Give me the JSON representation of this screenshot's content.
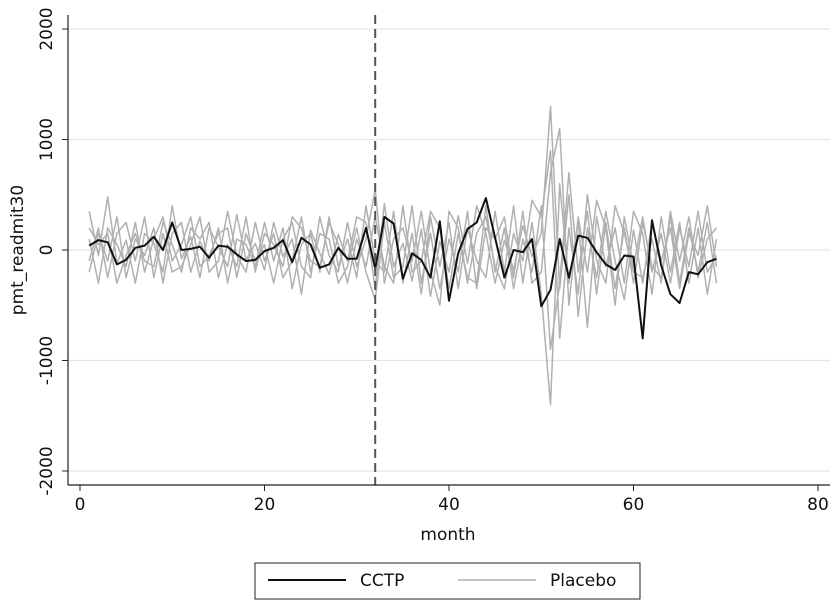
{
  "chart_data": {
    "type": "line",
    "x_label": "month",
    "y_label": "pmt_readmit30",
    "x": [
      1,
      2,
      3,
      4,
      5,
      6,
      7,
      8,
      9,
      10,
      11,
      12,
      13,
      14,
      15,
      16,
      17,
      18,
      19,
      20,
      21,
      22,
      23,
      24,
      25,
      26,
      27,
      28,
      29,
      30,
      31,
      32,
      33,
      34,
      35,
      36,
      37,
      38,
      39,
      40,
      41,
      42,
      43,
      44,
      45,
      46,
      47,
      48,
      49,
      50,
      51,
      52,
      53,
      54,
      55,
      56,
      57,
      58,
      59,
      60,
      61,
      62,
      63,
      64,
      65,
      66,
      67,
      68,
      69
    ],
    "xlim": [
      -1.3,
      81.3
    ],
    "xticks": [
      0,
      20,
      40,
      60,
      80
    ],
    "ylim": [
      -2127,
      2127
    ],
    "yticks": [
      -2000,
      -1000,
      0,
      1000,
      2000
    ],
    "grid": true,
    "legend": "bottom",
    "reference_line": {
      "x": 32,
      "color": "#555555"
    },
    "series": [
      {
        "name": "CCTP",
        "color": "#111111",
        "values": [
          40,
          90,
          70,
          -130,
          -90,
          20,
          40,
          120,
          0,
          250,
          0,
          10,
          30,
          -70,
          40,
          30,
          -40,
          -100,
          -90,
          -10,
          20,
          90,
          -110,
          110,
          50,
          -160,
          -130,
          20,
          -80,
          -80,
          200,
          -170,
          300,
          240,
          -260,
          -30,
          -90,
          -250,
          260,
          -460,
          -30,
          190,
          250,
          470,
          110,
          -250,
          0,
          -20,
          100,
          -510,
          -360,
          100,
          -250,
          130,
          110,
          -20,
          -130,
          -180,
          -50,
          -60,
          -800,
          270,
          -140,
          -400,
          -480,
          -200,
          -220,
          -110,
          -80
        ]
      },
      {
        "name": "Placebo",
        "color": "#b0b0b0",
        "values": [
          [
            350,
            -50,
            480,
            -120,
            90,
            -300,
            150,
            60,
            -200,
            400,
            -80,
            120,
            -250,
            200,
            30,
            -150,
            320,
            -90,
            60,
            -180,
            250,
            -60,
            100,
            -400,
            180,
            -30,
            -220,
            140,
            -100,
            300,
            250,
            -350,
            420,
            -150,
            60,
            -280,
            190,
            -420,
            80,
            -200,
            310,
            -120,
            400,
            150,
            -300,
            90,
            -180,
            220,
            -60,
            150,
            1300,
            -350,
            500,
            -600,
            200,
            -250,
            350,
            -100,
            -450,
            180,
            -300,
            250,
            -100,
            200,
            -350,
            150,
            -50,
            400,
            -150
          ],
          [
            -200,
            150,
            -100,
            300,
            -250,
            100,
            -50,
            200,
            -300,
            150,
            250,
            -200,
            80,
            -100,
            200,
            -300,
            100,
            50,
            -150,
            250,
            -100,
            200,
            -350,
            50,
            150,
            -200,
            300,
            -150,
            100,
            -250,
            400,
            -100,
            -200,
            350,
            -300,
            150,
            -400,
            300,
            -150,
            250,
            -350,
            200,
            -100,
            -250,
            350,
            -200,
            400,
            -300,
            250,
            -400,
            -1400,
            600,
            -300,
            250,
            -700,
            300,
            -150,
            200,
            -300,
            350,
            150,
            -400,
            300,
            -200,
            250,
            -300,
            200,
            -400,
            100
          ],
          [
            100,
            -300,
            200,
            50,
            -150,
            250,
            -200,
            100,
            300,
            -100,
            50,
            300,
            -150,
            -50,
            150,
            200,
            -250,
            150,
            -100,
            50,
            -300,
            100,
            250,
            -150,
            -250,
            300,
            -50,
            -200,
            250,
            -150,
            100,
            550,
            -300,
            100,
            200,
            -100,
            350,
            -200,
            -500,
            350,
            200,
            -300,
            150,
            300,
            -150,
            -350,
            150,
            -100,
            450,
            300,
            900,
            -800,
            200,
            -400,
            500,
            -100,
            -300,
            400,
            150,
            -200,
            -250,
            100,
            -300,
            350,
            -100,
            300,
            -250,
            100,
            200
          ],
          [
            -100,
            200,
            -250,
            150,
            250,
            -100,
            300,
            -250,
            150,
            -200,
            -150,
            50,
            300,
            -200,
            -100,
            350,
            -50,
            -200,
            250,
            -100,
            150,
            -250,
            -100,
            300,
            -200,
            150,
            100,
            -300,
            -150,
            200,
            -200,
            -450,
            250,
            -250,
            -150,
            400,
            -300,
            150,
            -350,
            100,
            -200,
            350,
            -350,
            200,
            100,
            300,
            -250,
            350,
            -300,
            -200,
            700,
            1100,
            -500,
            300,
            -200,
            450,
            200,
            -500,
            300,
            -150,
            300,
            -200,
            150,
            -300,
            200,
            -150,
            350,
            -200,
            -50
          ],
          [
            200,
            50,
            150,
            -300,
            -50,
            150,
            -100,
            -150,
            250,
            50,
            -200,
            200,
            100,
            250,
            -250,
            50,
            -150,
            300,
            -200,
            150,
            50,
            -150,
            300,
            200,
            -100,
            -150,
            250,
            50,
            -300,
            100,
            -150,
            300,
            -150,
            -300,
            400,
            -200,
            -100,
            350,
            200,
            -350,
            150,
            -250,
            -300,
            400,
            -200,
            200,
            -350,
            100,
            -200,
            400,
            -900,
            -300,
            700,
            -200,
            350,
            -400,
            250,
            -350,
            200,
            -300,
            250,
            -150,
            -250,
            300,
            -300,
            200,
            -200,
            250,
            -300
          ]
        ]
      }
    ]
  }
}
